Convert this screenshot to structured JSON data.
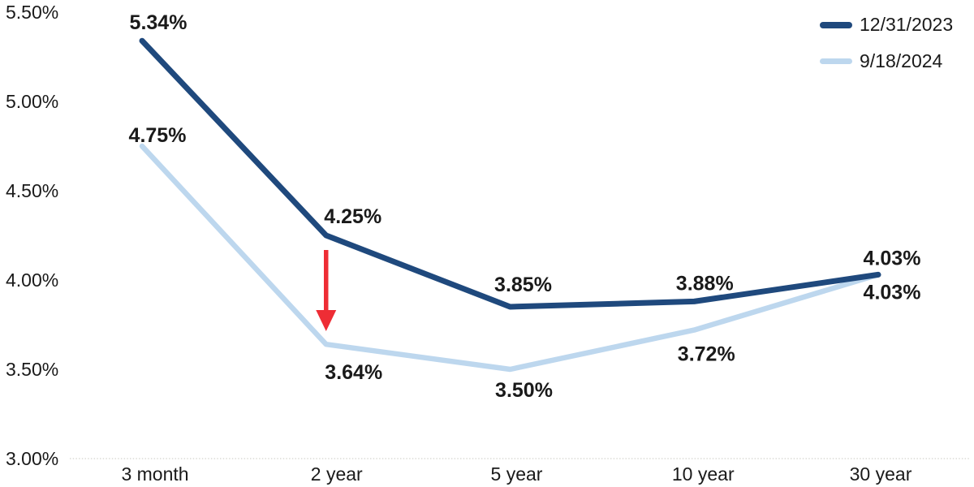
{
  "chart_data": {
    "type": "line",
    "title": "",
    "categories": [
      "3 month",
      "2 year",
      "5 year",
      "10 year",
      "30 year"
    ],
    "series": [
      {
        "name": "12/31/2023",
        "color": "#1f497d",
        "values": [
          5.34,
          4.25,
          3.85,
          3.88,
          4.03
        ],
        "labels": [
          "5.34%",
          "4.25%",
          "3.85%",
          "3.88%",
          "4.03%"
        ]
      },
      {
        "name": "9/18/2024",
        "color": "#bdd7ee",
        "values": [
          4.75,
          3.64,
          3.5,
          3.72,
          4.03
        ],
        "labels": [
          "4.75%",
          "3.64%",
          "3.50%",
          "3.72%",
          "4.03%"
        ]
      }
    ],
    "y_axis": {
      "ticks": [
        "5.50%",
        "5.00%",
        "4.50%",
        "4.00%",
        "3.50%",
        "3.00%"
      ],
      "tick_values": [
        5.5,
        5.0,
        4.5,
        4.0,
        3.5,
        3.0
      ],
      "ylim": [
        3.0,
        5.5
      ]
    },
    "x_axis": {
      "labels": [
        "3 month",
        "2 year",
        "5 year",
        "10 year",
        "30 year"
      ]
    },
    "legend": {
      "position": "top-right",
      "entries": [
        "12/31/2023",
        "9/18/2024"
      ]
    },
    "annotation": {
      "type": "down-arrow",
      "category": "2 year",
      "color": "#ee2d35"
    },
    "grid": false
  },
  "colors": {
    "label_text": "#1a1a1a",
    "axis_text": "#1a1a1a",
    "axis_line": "#dcdcd6",
    "background": "#ffffff"
  }
}
